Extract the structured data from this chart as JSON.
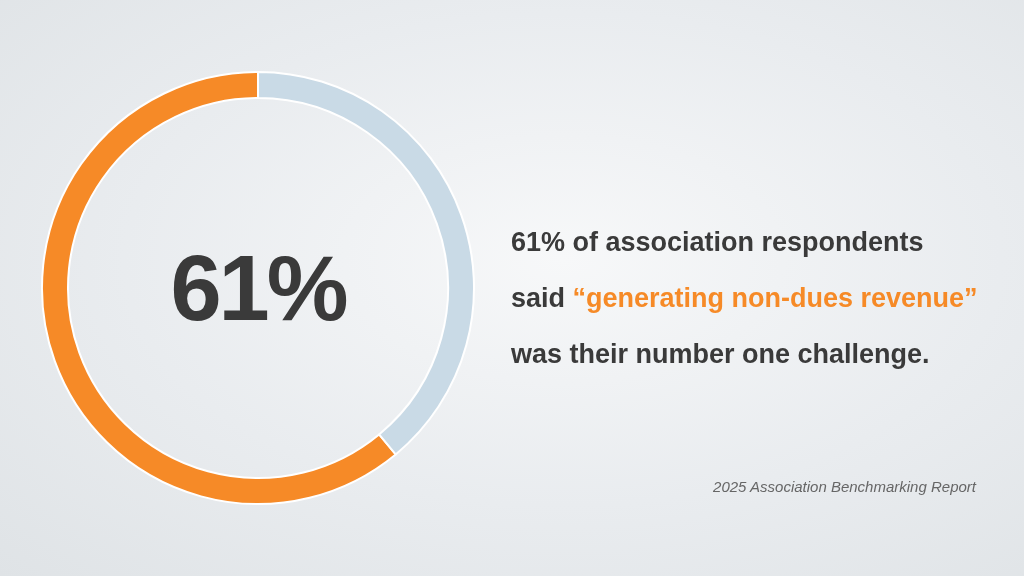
{
  "chart_data": {
    "type": "donut",
    "categories": [
      null,
      null
    ],
    "values": [
      61,
      39
    ],
    "colors": [
      "#f68a27",
      "#c9dae6"
    ],
    "annotations": [
      "61%",
      "61% of association respondents",
      "said",
      "“generating non-dues revenue”",
      "was their number one challenge.",
      "2025 Association Benchmarking Report"
    ]
  }
}
